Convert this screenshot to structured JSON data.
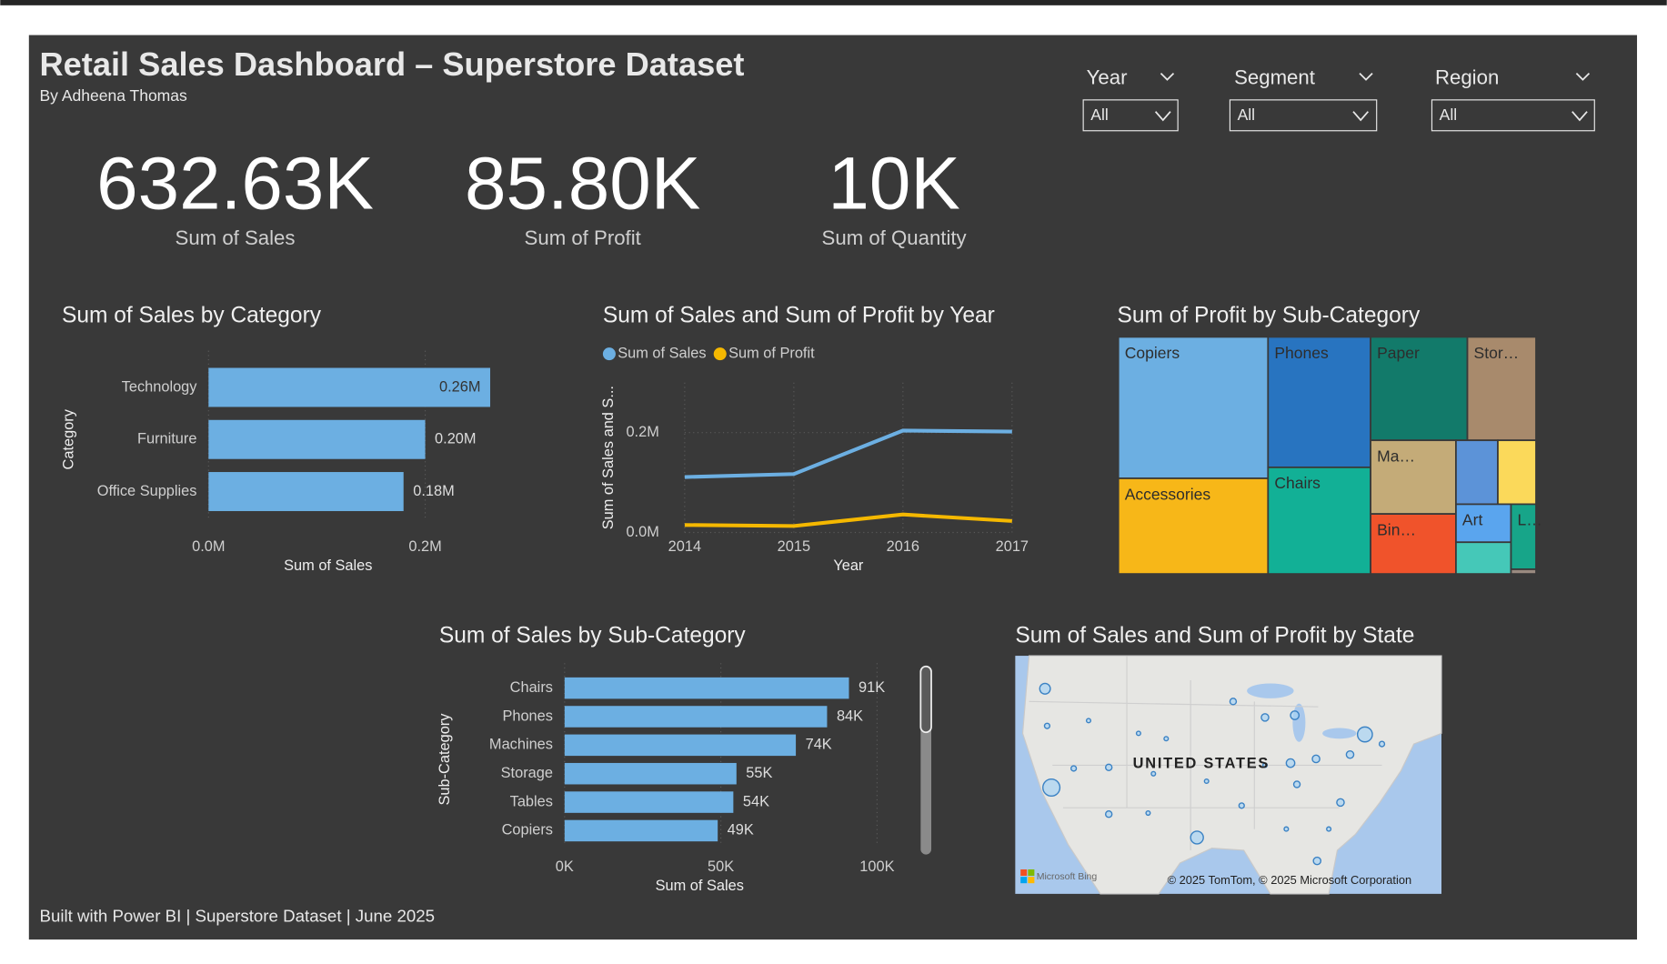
{
  "header": {
    "title": "Retail Sales Dashboard – Superstore Dataset",
    "subtitle": "By Adheena Thomas"
  },
  "filters": [
    {
      "label": "Year",
      "value": "All"
    },
    {
      "label": "Segment",
      "value": "All"
    },
    {
      "label": "Region",
      "value": "All"
    }
  ],
  "kpis": [
    {
      "value": "632.63K",
      "label": "Sum of Sales"
    },
    {
      "value": "85.80K",
      "label": "Sum of Profit"
    },
    {
      "value": "10K",
      "label": "Sum of Quantity"
    }
  ],
  "chart_data": [
    {
      "type": "hbar",
      "title": "Sum of Sales by Category",
      "categories": [
        "Technology",
        "Furniture",
        "Office Supplies"
      ],
      "values": [
        260000,
        200000,
        180000
      ],
      "value_labels": [
        "0.26M",
        "0.20M",
        "0.18M"
      ],
      "color": "#6cafe2",
      "xlim": [
        0,
        260000
      ],
      "xticks": [
        {
          "value": 0,
          "label": "0.0M"
        },
        {
          "value": 200000,
          "label": "0.2M"
        }
      ],
      "xlabel": "Sum of Sales",
      "ylabel": "Category",
      "grid": true
    },
    {
      "type": "line",
      "title": "Sum of Sales and Sum of Profit by Year",
      "x": [
        2014,
        2015,
        2016,
        2017
      ],
      "series": [
        {
          "name": "Sum of Sales",
          "color": "#6cafe2",
          "values": [
            111000,
            117000,
            204000,
            202000
          ]
        },
        {
          "name": "Sum of Profit",
          "color": "#f5b800",
          "values": [
            15000,
            13000,
            36000,
            23000
          ]
        }
      ],
      "xlim": [
        2014,
        2017
      ],
      "xticks": [
        2014,
        2015,
        2016,
        2017
      ],
      "ylim": [
        0,
        300000
      ],
      "yticks": [
        {
          "value": 0,
          "label": "0.0M"
        },
        {
          "value": 200000,
          "label": "0.2M"
        }
      ],
      "xlabel": "Year",
      "ylabel": "Sum of Sales and S...",
      "grid": true
    },
    {
      "type": "treemap",
      "title": "Sum of Profit by Sub-Category",
      "categories": [
        "Copiers",
        "Accessories",
        "Phones",
        "Chairs",
        "Paper",
        "Stor…",
        "Ma…",
        "Bin…",
        null,
        null,
        "Art",
        null,
        "L…",
        null
      ],
      "values": [
        18200,
        12300,
        11500,
        9400,
        8600,
        6100,
        5400,
        4400,
        2300,
        2100,
        1800,
        1500,
        1400,
        100
      ],
      "colors": [
        "#6cafe2",
        "#f7b718",
        "#2874c0",
        "#12b096",
        "#127a6a",
        "#a88a6c",
        "#c4ab78",
        "#f0532b",
        "#5c93d8",
        "#fbd95a",
        "#5aa5ee",
        "#45c8b8",
        "#17a589",
        "#9a8a80"
      ]
    },
    {
      "type": "hbar",
      "title": "Sum of Sales by Sub-Category",
      "categories": [
        "Chairs",
        "Phones",
        "Machines",
        "Storage",
        "Tables",
        "Copiers"
      ],
      "values": [
        91000,
        84000,
        74000,
        55000,
        54000,
        49000
      ],
      "value_labels": [
        "91K",
        "84K",
        "74K",
        "55K",
        "54K",
        "49K"
      ],
      "color": "#6cafe2",
      "xlim": [
        0,
        100000
      ],
      "xticks": [
        {
          "value": 0,
          "label": "0K"
        },
        {
          "value": 50000,
          "label": "50K"
        },
        {
          "value": 100000,
          "label": "100K"
        }
      ],
      "xlabel": "Sum of Sales",
      "ylabel": "Sub-Category",
      "grid": true
    },
    {
      "type": "map",
      "title": "Sum of Sales and Sum of Profit by State",
      "annotations": [
        "UNITED STATES",
        "Microsoft Bing",
        "© 2025 TomTom, © 2025 Microsoft Corporation"
      ]
    }
  ],
  "footer": "Built with Power BI | Superstore Dataset | June 2025"
}
